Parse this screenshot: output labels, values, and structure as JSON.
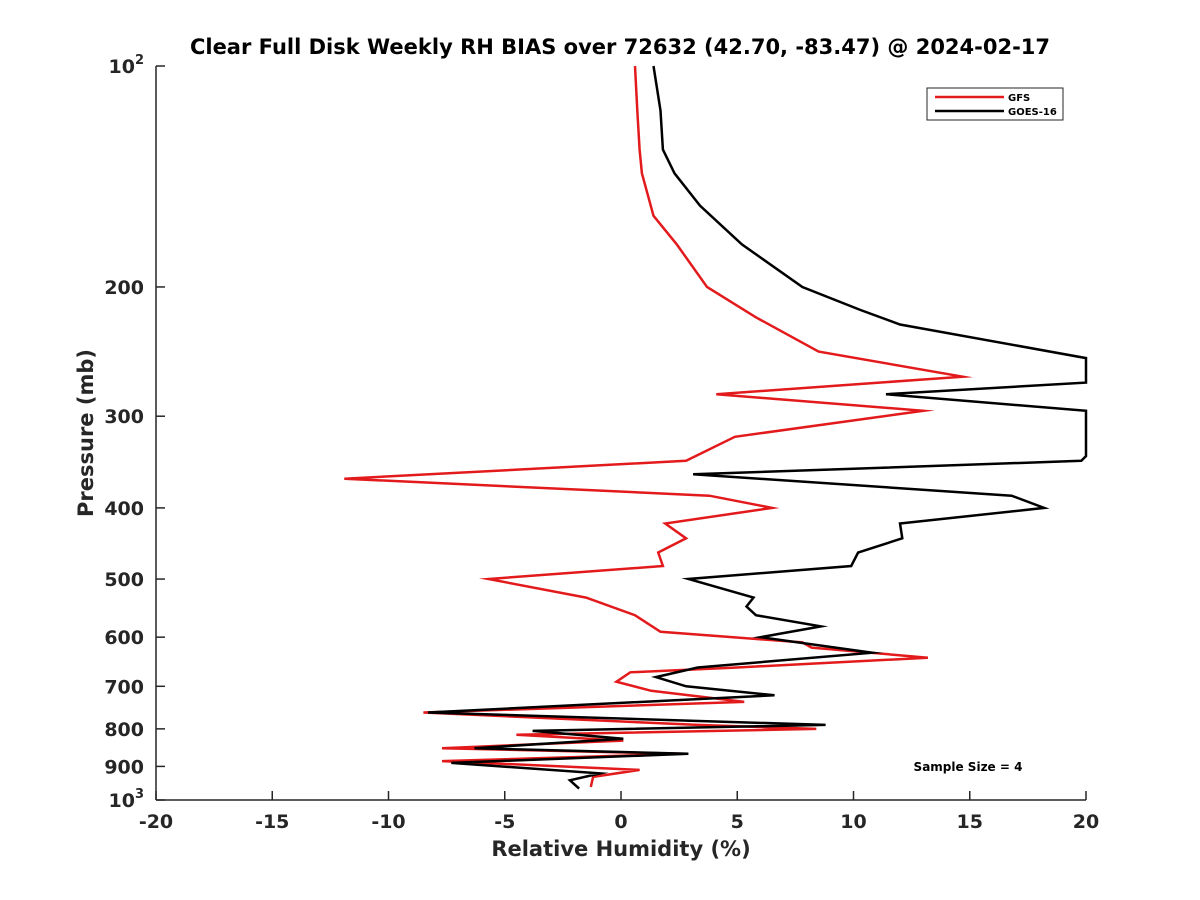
{
  "chart_data": {
    "type": "line",
    "title": "Clear Full Disk Weekly RH BIAS over 72632 (42.70, -83.47) @ 2024-02-17",
    "xlabel": "Relative Humidity (%)",
    "ylabel": "Pressure (mb)",
    "xlim": [
      -20,
      20
    ],
    "ylim": [
      100,
      1000
    ],
    "yscale": "log",
    "y_reversed": true,
    "x_ticks": [
      "-20",
      "-15",
      "-10",
      "-5",
      "0",
      "5",
      "10",
      "15",
      "20"
    ],
    "y_ticks": [
      {
        "value": 100,
        "base": "10",
        "exp": "2"
      },
      {
        "value": 200,
        "label": "200"
      },
      {
        "value": 300,
        "label": "300"
      },
      {
        "value": 400,
        "label": "400"
      },
      {
        "value": 500,
        "label": "500"
      },
      {
        "value": 600,
        "label": "600"
      },
      {
        "value": 700,
        "label": "700"
      },
      {
        "value": 800,
        "label": "800"
      },
      {
        "value": 900,
        "label": "900"
      },
      {
        "value": 1000,
        "base": "10",
        "exp": "3"
      }
    ],
    "grid": false,
    "legend_position": "top-right",
    "annotation": "Sample Size = 4",
    "series": [
      {
        "name": "GFS",
        "color": "#e31a1c",
        "x": [
          0.6,
          0.7,
          0.8,
          0.9,
          1.4,
          2.4,
          3.7,
          5.8,
          8.5,
          14.7,
          4.1,
          13.0,
          4.9,
          2.8,
          -11.9,
          3.8,
          6.5,
          1.9,
          2.8,
          1.6,
          1.8,
          -5.7,
          -1.5,
          0.6,
          1.7,
          7.8,
          8.2,
          13.2,
          5.0,
          0.4,
          -0.2,
          1.3,
          5.3,
          -8.5,
          3.3,
          8.4,
          -4.5,
          0.1,
          -7.7,
          2.7,
          -7.7,
          0.8,
          -1.2,
          -1.3
        ],
        "y": [
          100,
          115,
          130,
          140,
          160,
          175,
          200,
          220,
          245,
          265,
          280,
          295,
          320,
          345,
          365,
          385,
          400,
          420,
          440,
          460,
          480,
          500,
          530,
          560,
          590,
          610,
          620,
          640,
          660,
          670,
          690,
          710,
          735,
          760,
          790,
          800,
          815,
          830,
          850,
          865,
          885,
          910,
          930,
          960
        ]
      },
      {
        "name": "GOES-16",
        "color": "#000000",
        "x": [
          1.4,
          1.7,
          1.8,
          2.3,
          3.4,
          5.2,
          7.8,
          10.3,
          12.0,
          20.0,
          20.0,
          11.4,
          20.0,
          20.0,
          19.8,
          3.1,
          16.8,
          18.2,
          12.0,
          12.1,
          10.2,
          9.9,
          2.9,
          5.7,
          5.4,
          5.8,
          8.6,
          6.0,
          10.8,
          3.3,
          1.5,
          2.8,
          6.6,
          -8.3,
          8.8,
          -3.8,
          0.1,
          -6.3,
          2.9,
          -7.3,
          -0.9,
          -2.2,
          -1.8
        ],
        "y": [
          100,
          115,
          130,
          140,
          155,
          175,
          200,
          215,
          225,
          250,
          270,
          280,
          295,
          340,
          345,
          360,
          385,
          400,
          420,
          440,
          460,
          480,
          500,
          530,
          545,
          560,
          580,
          600,
          630,
          660,
          680,
          700,
          720,
          760,
          790,
          805,
          825,
          850,
          865,
          890,
          920,
          940,
          965
        ]
      }
    ]
  }
}
